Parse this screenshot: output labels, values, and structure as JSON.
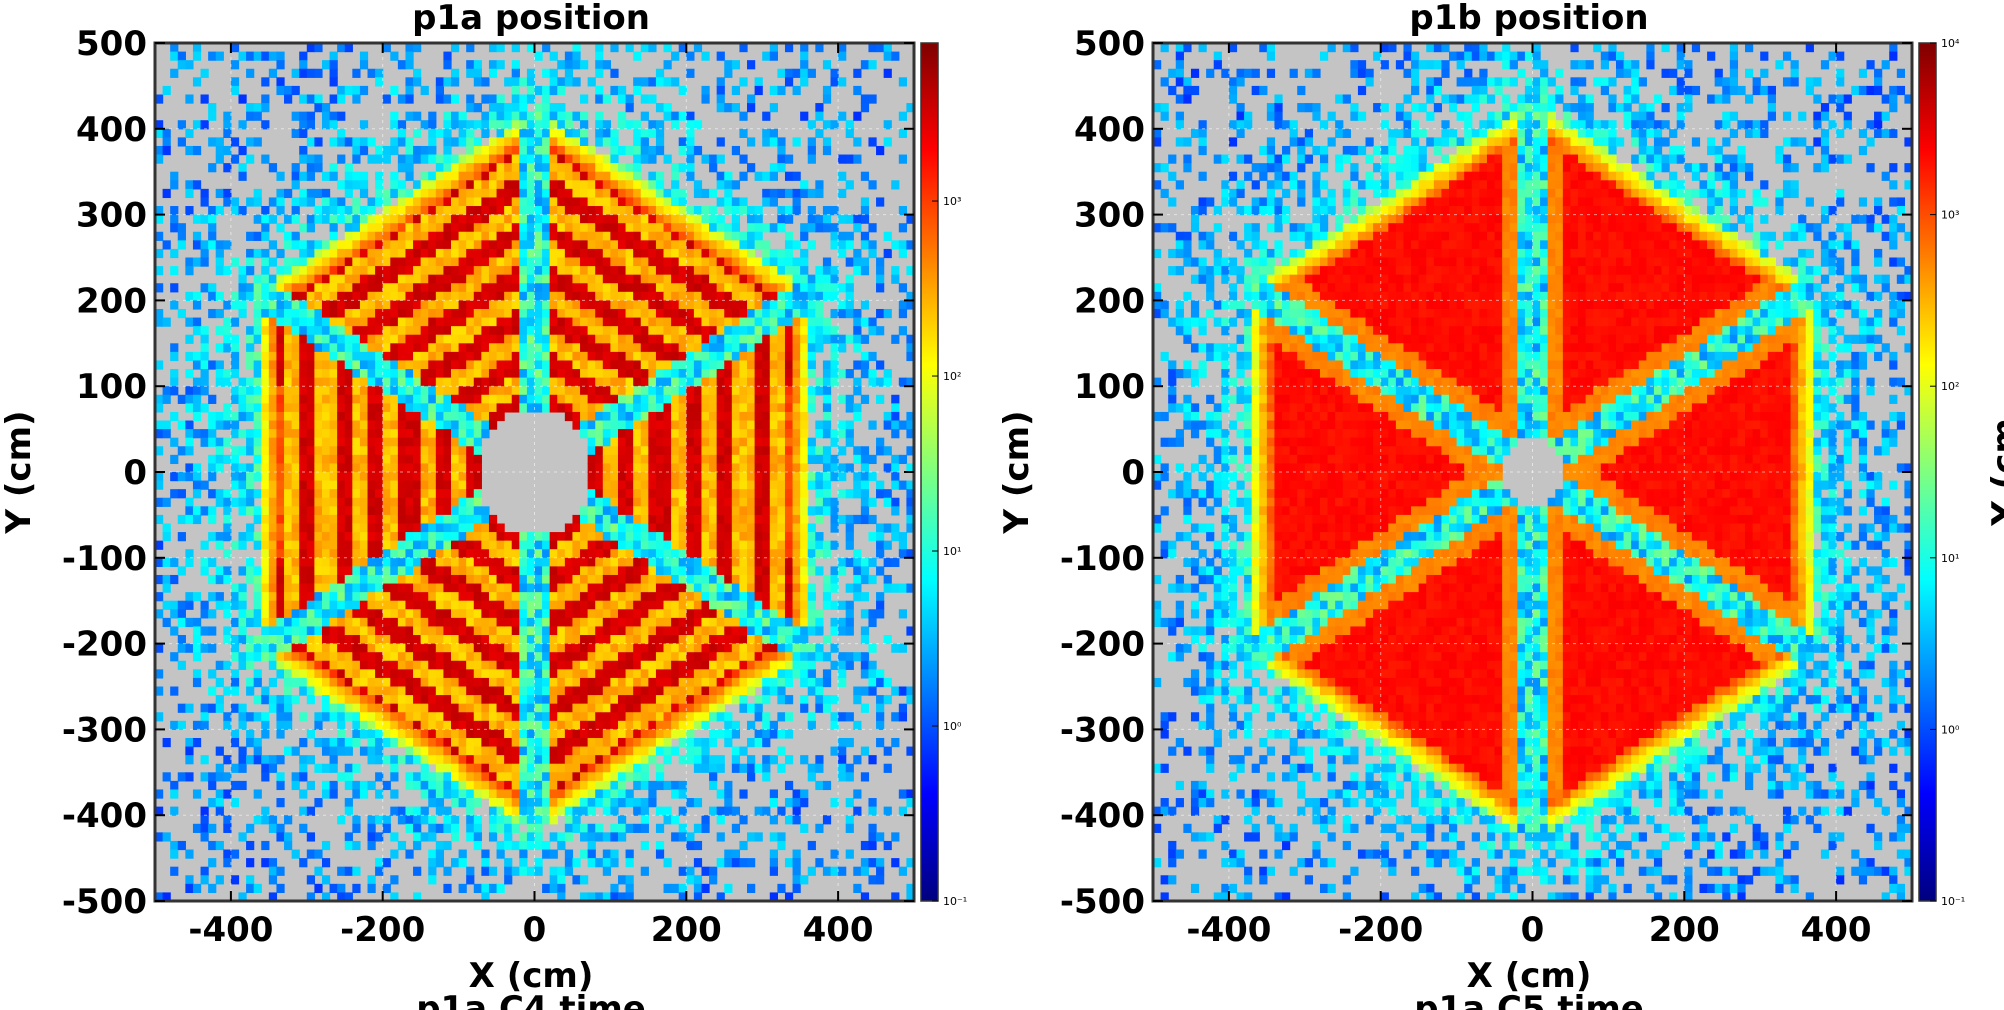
{
  "chart_data": [
    {
      "type": "heatmap",
      "title": "p1a position",
      "xlabel": "X (cm)",
      "ylabel": "Y (cm)",
      "xlim": [
        -500,
        500
      ],
      "ylim": [
        -500,
        500
      ],
      "xticks": [
        -400,
        -200,
        0,
        200,
        400
      ],
      "yticks": [
        500,
        400,
        300,
        200,
        100,
        0,
        -100,
        -200,
        -300,
        -400,
        -500
      ],
      "colorbar": {
        "scale": "log",
        "ticks": [
          "10⁻¹",
          "10⁰",
          "10¹",
          "10²",
          "10³"
        ],
        "range": [
          0.1,
          8000
        ]
      },
      "background_color": "#c4c4c4",
      "colormap": "jet",
      "structure": {
        "shape": "hexagon of six triangular sectors",
        "outer_radius": 420,
        "inner_hole_radius": 75,
        "sector_center_angles_deg": [
          0,
          60,
          120,
          180,
          240,
          300
        ],
        "fill": "striped",
        "peak_count": 3000
      },
      "partial_bottom_label": "p1a C4 time"
    },
    {
      "type": "heatmap",
      "title": "p1b position",
      "xlabel": "X (cm)",
      "ylabel": "Y (cm)",
      "xlim": [
        -500,
        500
      ],
      "ylim": [
        -500,
        500
      ],
      "xticks": [
        -400,
        -200,
        0,
        200,
        400
      ],
      "yticks": [
        500,
        400,
        300,
        200,
        100,
        0,
        -100,
        -200,
        -300,
        -400,
        -500
      ],
      "colorbar": {
        "scale": "log",
        "ticks": [
          "10⁻¹",
          "10⁰",
          "10¹",
          "10²",
          "10³",
          "10⁴"
        ],
        "range": [
          0.1,
          10000
        ]
      },
      "background_color": "#c4c4c4",
      "colormap": "jet",
      "structure": {
        "shape": "hexagon of six triangular sectors",
        "outer_radius": 430,
        "inner_hole_radius": 40,
        "sector_center_angles_deg": [
          0,
          60,
          120,
          180,
          240,
          300
        ],
        "fill": "smooth",
        "peak_count": 3000
      },
      "partial_bottom_label": "p1a C5 time",
      "partial_right_label": "Y (cm"
    }
  ]
}
